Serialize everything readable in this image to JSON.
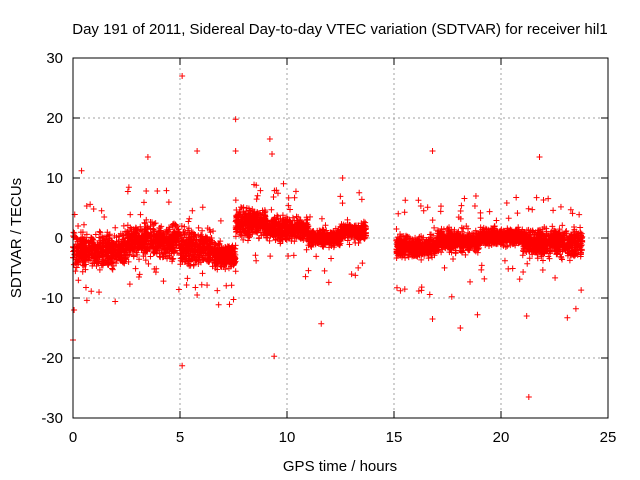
{
  "chart_data": {
    "type": "scatter",
    "title": "Day 191 of 2011, Sidereal Day-to-day VTEC variation (SDTVAR) for receiver hil1",
    "xlabel": "GPS time / hours",
    "ylabel": "SDTVAR / TECUs",
    "xlim": [
      0,
      25
    ],
    "ylim": [
      -30,
      30
    ],
    "xticks": [
      0,
      5,
      10,
      15,
      20,
      25
    ],
    "yticks": [
      -30,
      -20,
      -10,
      0,
      10,
      20,
      30
    ],
    "grid": true,
    "marker": "+",
    "color": "#ff0000",
    "data_gap_hours": [
      13.7,
      15.1
    ],
    "segments": [
      {
        "x_start": 0.0,
        "x_end": 2.5,
        "center": -2.0,
        "halfwidth": 2.8
      },
      {
        "x_start": 2.5,
        "x_end": 5.0,
        "center": -0.5,
        "halfwidth": 3.0
      },
      {
        "x_start": 5.0,
        "x_end": 6.5,
        "center": -1.5,
        "halfwidth": 3.0
      },
      {
        "x_start": 6.5,
        "x_end": 7.6,
        "center": -3.0,
        "halfwidth": 2.2
      },
      {
        "x_start": 7.6,
        "x_end": 9.0,
        "center": 2.5,
        "halfwidth": 2.5
      },
      {
        "x_start": 9.0,
        "x_end": 11.0,
        "center": 1.5,
        "halfwidth": 2.0
      },
      {
        "x_start": 11.0,
        "x_end": 12.5,
        "center": 0.0,
        "halfwidth": 1.5
      },
      {
        "x_start": 12.5,
        "x_end": 13.7,
        "center": 1.0,
        "halfwidth": 1.5
      },
      {
        "x_start": 15.1,
        "x_end": 17.0,
        "center": -1.5,
        "halfwidth": 2.0
      },
      {
        "x_start": 17.0,
        "x_end": 19.0,
        "center": -0.5,
        "halfwidth": 2.0
      },
      {
        "x_start": 19.0,
        "x_end": 21.0,
        "center": 0.2,
        "halfwidth": 1.5
      },
      {
        "x_start": 21.0,
        "x_end": 23.8,
        "center": -0.8,
        "halfwidth": 2.5
      }
    ],
    "outliers": [
      {
        "x": 5.1,
        "y": 27.0
      },
      {
        "x": 7.6,
        "y": 19.8
      },
      {
        "x": 9.2,
        "y": 16.5
      },
      {
        "x": 9.3,
        "y": 14.0
      },
      {
        "x": 7.6,
        "y": 14.5
      },
      {
        "x": 5.8,
        "y": 14.5
      },
      {
        "x": 3.5,
        "y": 13.5
      },
      {
        "x": 16.8,
        "y": 14.5
      },
      {
        "x": 21.8,
        "y": 13.5
      },
      {
        "x": 0.4,
        "y": 11.2
      },
      {
        "x": 12.6,
        "y": 10.0
      },
      {
        "x": 0.0,
        "y": -17.0
      },
      {
        "x": 0.05,
        "y": -12.0
      },
      {
        "x": 5.1,
        "y": -21.3
      },
      {
        "x": 9.4,
        "y": -19.7
      },
      {
        "x": 11.6,
        "y": -14.3
      },
      {
        "x": 16.8,
        "y": -13.5
      },
      {
        "x": 18.1,
        "y": -15.0
      },
      {
        "x": 18.9,
        "y": -12.8
      },
      {
        "x": 21.2,
        "y": -13.0
      },
      {
        "x": 21.3,
        "y": -26.5
      },
      {
        "x": 23.1,
        "y": -13.3
      },
      {
        "x": 23.5,
        "y": -11.8
      },
      {
        "x": 17.7,
        "y": -9.8
      },
      {
        "x": 5.8,
        "y": -9.5
      },
      {
        "x": 15.3,
        "y": -8.8
      }
    ]
  }
}
